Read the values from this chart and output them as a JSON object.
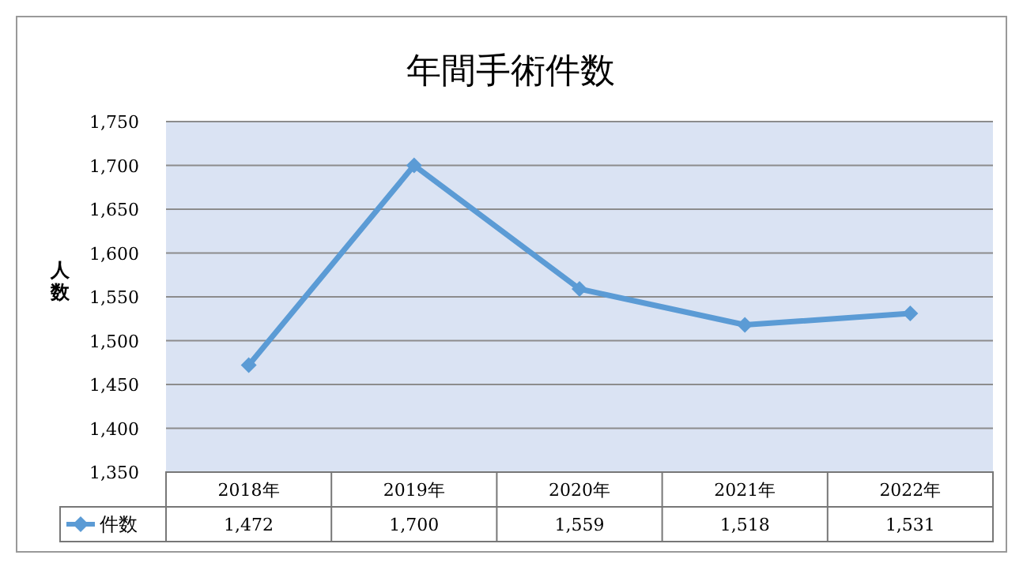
{
  "chart_data": {
    "type": "line",
    "title": "年間手術件数",
    "ylabel": "人数",
    "categories": [
      "2018年",
      "2019年",
      "2020年",
      "2021年",
      "2022年"
    ],
    "series": [
      {
        "name": "件数",
        "color": "#5b9bd5",
        "values": [
          1472,
          1700,
          1559,
          1518,
          1531
        ],
        "value_labels": [
          "1,472",
          "1,700",
          "1,559",
          "1,518",
          "1,531"
        ]
      }
    ],
    "ylim": [
      1350,
      1750
    ],
    "yticks": [
      {
        "value": 1350,
        "label": "1,350"
      },
      {
        "value": 1400,
        "label": "1,400"
      },
      {
        "value": 1450,
        "label": "1,450"
      },
      {
        "value": 1500,
        "label": "1,500"
      },
      {
        "value": 1550,
        "label": "1,550"
      },
      {
        "value": 1600,
        "label": "1,600"
      },
      {
        "value": 1650,
        "label": "1,650"
      },
      {
        "value": 1700,
        "label": "1,700"
      },
      {
        "value": 1750,
        "label": "1,750"
      }
    ],
    "grid": "y",
    "legend": "bottom left",
    "marker": "diamond",
    "line_style": "solid"
  }
}
